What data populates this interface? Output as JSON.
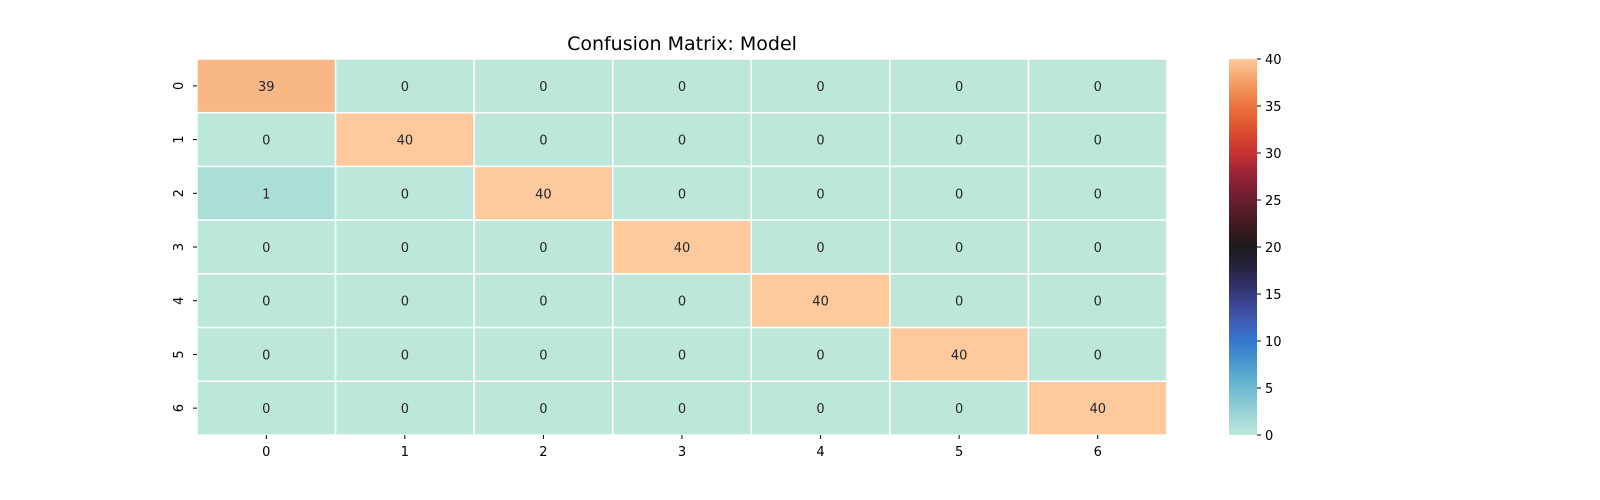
{
  "chart_data": {
    "type": "heatmap",
    "title": "Confusion Matrix: Model",
    "xlabel": "",
    "ylabel": "",
    "x_categories": [
      "0",
      "1",
      "2",
      "3",
      "4",
      "5",
      "6"
    ],
    "y_categories": [
      "0",
      "1",
      "2",
      "3",
      "4",
      "5",
      "6"
    ],
    "values": [
      [
        39,
        0,
        0,
        0,
        0,
        0,
        0
      ],
      [
        0,
        40,
        0,
        0,
        0,
        0,
        0
      ],
      [
        1,
        0,
        40,
        0,
        0,
        0,
        0
      ],
      [
        0,
        0,
        0,
        40,
        0,
        0,
        0
      ],
      [
        0,
        0,
        0,
        0,
        40,
        0,
        0
      ],
      [
        0,
        0,
        0,
        0,
        0,
        40,
        0
      ],
      [
        0,
        0,
        0,
        0,
        0,
        0,
        40
      ]
    ],
    "annotations": true,
    "colormap": "icefire",
    "colorbar": {
      "range": [
        0,
        40
      ],
      "ticks": [
        "0",
        "5",
        "10",
        "15",
        "20",
        "25",
        "30",
        "35",
        "40"
      ],
      "placement": "right"
    },
    "grid_lines_color": "#ffffff"
  }
}
